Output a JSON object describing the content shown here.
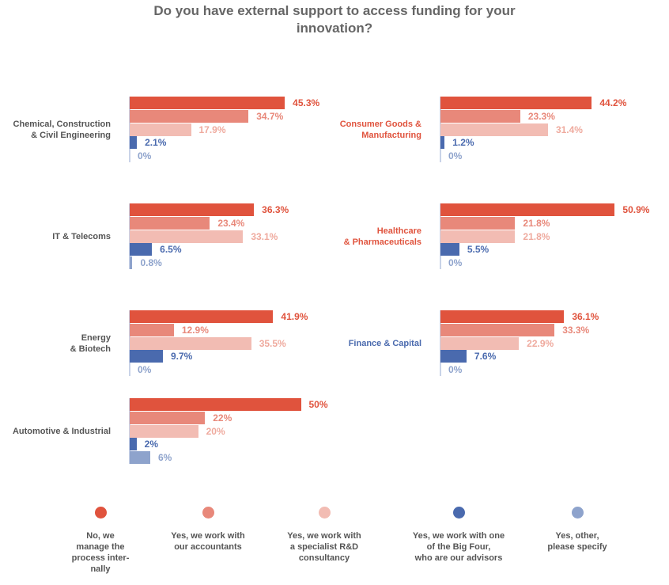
{
  "chart_data": {
    "type": "bar",
    "orientation": "horizontal",
    "title": "Do you have external support to access funding for your\ninnovation?",
    "categories": [
      "Chemical, Construction\n& Civil Engineering",
      "Consumer Goods &\nManufacturing",
      "IT & Telecoms",
      "Healthcare\n& Pharmaceuticals",
      "Energy\n& Biotech",
      "Finance & Capital",
      "Automotive & Industrial"
    ],
    "category_colors": [
      "#555555",
      "#e0533d",
      "#555555",
      "#e0533d",
      "#555555",
      "#4a6aae",
      "#555555"
    ],
    "series": [
      {
        "name": "No, we\nmanage the\nprocess inter-\nnally",
        "color": "#e0533d",
        "label_color": "#e0533d",
        "values": [
          45.3,
          44.2,
          36.3,
          50.9,
          41.9,
          36.1,
          50
        ],
        "value_labels": [
          "45.3%",
          "44.2%",
          "36.3%",
          "50.9%",
          "41.9%",
          "36.1%",
          "50%"
        ]
      },
      {
        "name": "Yes, we work with\nour accountants",
        "color": "#e8887a",
        "label_color": "#e8887a",
        "values": [
          34.7,
          23.3,
          23.4,
          21.8,
          12.9,
          33.3,
          22
        ],
        "value_labels": [
          "34.7%",
          "23.3%",
          "23.4%",
          "21.8%",
          "12.9%",
          "33.3%",
          "22%"
        ]
      },
      {
        "name": "Yes, we work with\na specialist R&D\nconsultancy",
        "color": "#f2bcb3",
        "label_color": "#efaa9e",
        "values": [
          17.9,
          31.4,
          33.1,
          21.8,
          35.5,
          22.9,
          20
        ],
        "value_labels": [
          "17.9%",
          "31.4%",
          "33.1%",
          "21.8%",
          "35.5%",
          "22.9%",
          "20%"
        ]
      },
      {
        "name": "Yes, we work with one\nof the Big Four,\nwho are our advisors",
        "color": "#4a6aae",
        "label_color": "#4a6aae",
        "values": [
          2.1,
          1.2,
          6.5,
          5.5,
          9.7,
          7.6,
          2
        ],
        "value_labels": [
          "2.1%",
          "1.2%",
          "6.5%",
          "5.5%",
          "9.7%",
          "7.6%",
          "2%"
        ]
      },
      {
        "name": "Yes, other,\nplease specify",
        "color": "#8ea3cc",
        "label_color": "#8ea3cc",
        "values": [
          0,
          0,
          0.8,
          0,
          0,
          0,
          6
        ],
        "value_labels": [
          "0%",
          "0%",
          "0.8%",
          "0%",
          "0%",
          "0%",
          "6%"
        ]
      }
    ]
  }
}
